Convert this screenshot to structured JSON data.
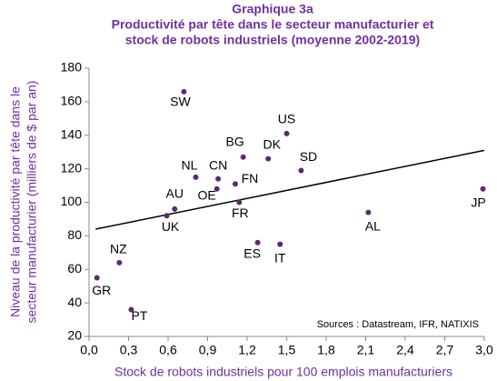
{
  "chart_data": {
    "type": "scatter",
    "title": [
      "Graphique 3a",
      "Productivité par tête dans le secteur manufacturier et",
      "stock de robots industriels (moyenne 2002-2019)"
    ],
    "ylabel": [
      "Niveau de la productivité par tête dans le",
      "secteur manufacturier (milliers de $ par an)"
    ],
    "xlabel": "Stock de robots industriels pour 100 emplois manufacturiers",
    "annotation": "Sources : Datastream, IFR, NATIXIS",
    "labels": [
      "GR",
      "NZ",
      "PT",
      "UK",
      "AU",
      "SW",
      "NL",
      "OE",
      "CN",
      "FN",
      "FR",
      "BG",
      "ES",
      "DK",
      "IT",
      "US",
      "SD",
      "AL",
      "JP"
    ],
    "x": [
      0.06,
      0.23,
      0.32,
      0.59,
      0.65,
      0.72,
      0.81,
      0.97,
      0.98,
      1.11,
      1.14,
      1.17,
      1.28,
      1.36,
      1.45,
      1.5,
      1.61,
      2.12,
      2.99
    ],
    "y": [
      55,
      64,
      36,
      92,
      96,
      166,
      115,
      108,
      114,
      111,
      100,
      127,
      76,
      126,
      75,
      141,
      119,
      94,
      108
    ],
    "color": "#5b2a6e",
    "trendline": {
      "x": [
        0.05,
        3.0
      ],
      "y": [
        84,
        131
      ],
      "color": "#000000"
    },
    "xlim": [
      0,
      3.0
    ],
    "xticks": [
      {
        "value": 0,
        "label": "0,0"
      },
      {
        "value": 0.3,
        "label": "0,3"
      },
      {
        "value": 0.6,
        "label": "0,6"
      },
      {
        "value": 0.9,
        "label": "0,9"
      },
      {
        "value": 1.2,
        "label": "1,2"
      },
      {
        "value": 1.5,
        "label": "1,5"
      },
      {
        "value": 1.8,
        "label": "1,8"
      },
      {
        "value": 2.1,
        "label": "2,1"
      },
      {
        "value": 2.4,
        "label": "2,4"
      },
      {
        "value": 2.7,
        "label": "2,7"
      },
      {
        "value": 3.0,
        "label": "3,0"
      }
    ],
    "ylim": [
      20,
      180
    ],
    "yticks": [
      20,
      40,
      60,
      80,
      100,
      120,
      140,
      160,
      180
    ],
    "grid": false
  }
}
